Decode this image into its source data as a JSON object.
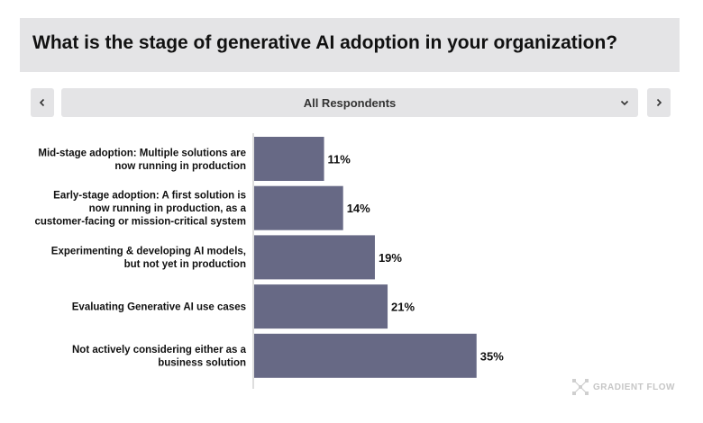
{
  "header": {
    "title": "What is the stage of generative AI adoption in your organization?"
  },
  "filter": {
    "prev_label": "<",
    "next_label": ">",
    "selected": "All Respondents"
  },
  "colors": {
    "bar": "#676985",
    "title_bg": "#e4e4e6",
    "text": "#111111"
  },
  "chart_data": {
    "type": "bar",
    "orientation": "horizontal",
    "categories": [
      [
        "Mid-stage adoption: Multiple solutions are",
        "now running in production"
      ],
      [
        "Early-stage adoption: A first solution is",
        "now running in production, as a",
        "customer-facing or mission-critical system"
      ],
      [
        "Experimenting & developing AI models,",
        "but not yet in production"
      ],
      [
        "Evaluating Generative AI use cases"
      ],
      [
        "Not actively considering either as a",
        "business solution"
      ]
    ],
    "values": [
      11,
      14,
      19,
      21,
      35
    ],
    "value_labels": [
      "11%",
      "14%",
      "19%",
      "21%",
      "35%"
    ],
    "unit": "%",
    "title": "What is the stage of generative AI adoption in your organization?",
    "xlabel": "",
    "ylabel": "",
    "grid": false,
    "legend": false
  },
  "logo": {
    "text": "GRADIENT FLOW",
    "icon": "gradient-flow-logo-icon"
  }
}
